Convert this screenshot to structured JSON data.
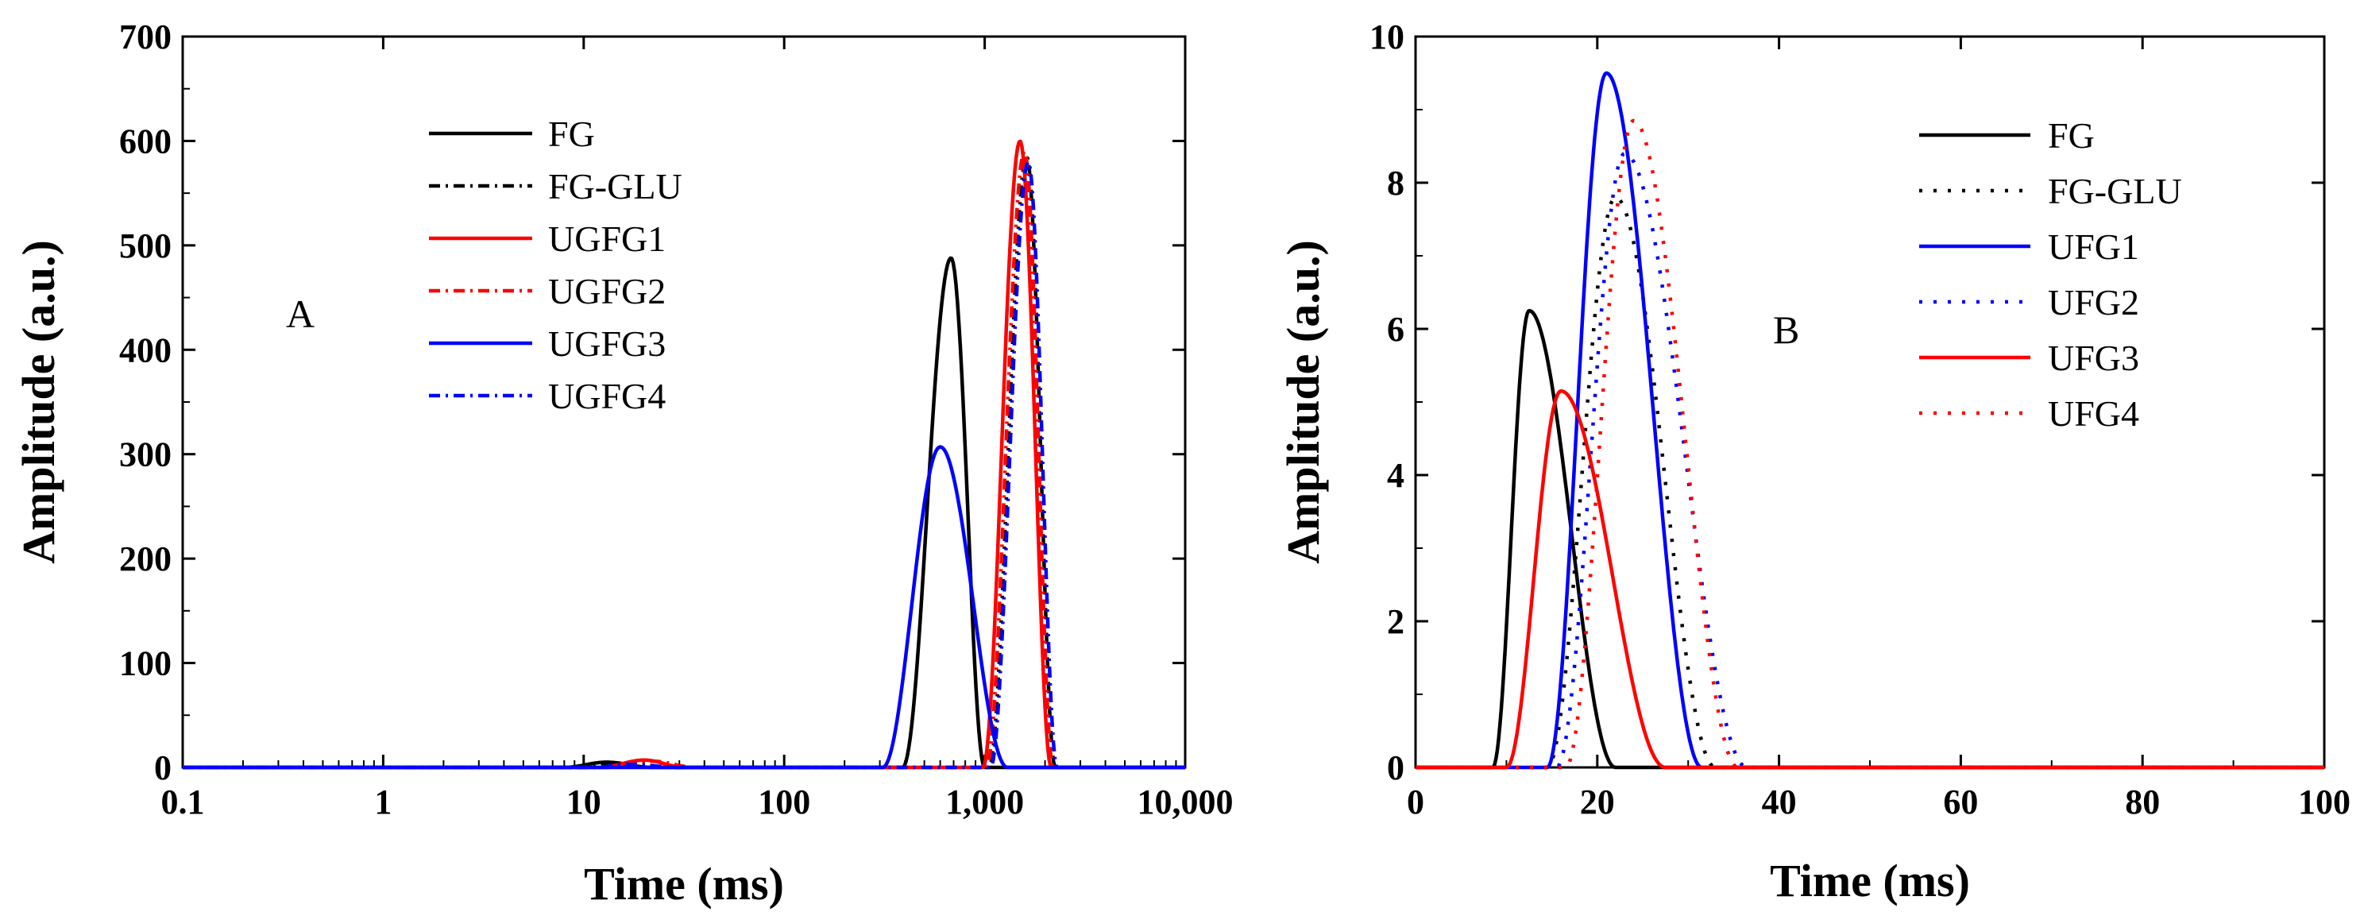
{
  "chart_data": [
    {
      "panel": "A",
      "type": "line",
      "annotation": "A",
      "xlabel": "Time (ms)",
      "ylabel": "Amplitude (a.u.)",
      "xscale": "log",
      "xlim": [
        0.1,
        10000
      ],
      "ylim": [
        0,
        700
      ],
      "xticks": [
        0.1,
        1,
        10,
        100,
        1000,
        10000
      ],
      "xtick_labels": [
        "0.1",
        "1",
        "10",
        "100",
        "1,000",
        "10,000"
      ],
      "yticks": [
        0,
        100,
        200,
        300,
        400,
        500,
        600,
        700
      ],
      "ytick_labels": [
        "0",
        "100",
        "200",
        "300",
        "400",
        "500",
        "600",
        "700"
      ],
      "legend_position": "upper-left",
      "series": [
        {
          "name": "FG",
          "color": "#000000",
          "dash": "solid",
          "peaks": [
            {
              "center": 680,
              "amp": 488,
              "start": 390,
              "end": 1000
            },
            {
              "center": 13,
              "amp": 5,
              "start": 8,
              "end": 22
            }
          ]
        },
        {
          "name": "FG-GLU",
          "color": "#000000",
          "dash": "dashdot",
          "peaks": [
            {
              "center": 1620,
              "amp": 585,
              "start": 1050,
              "end": 2250
            },
            {
              "center": 16,
              "amp": 4,
              "start": 10,
              "end": 28
            }
          ]
        },
        {
          "name": "UGFG1",
          "color": "#ff0000",
          "dash": "solid",
          "peaks": [
            {
              "center": 1500,
              "amp": 600,
              "start": 980,
              "end": 2150
            },
            {
              "center": 20,
              "amp": 7,
              "start": 12,
              "end": 32
            }
          ]
        },
        {
          "name": "UGFG2",
          "color": "#ff0000",
          "dash": "dashdot",
          "peaks": [
            {
              "center": 1580,
              "amp": 590,
              "start": 1020,
              "end": 2200
            },
            {
              "center": 22,
              "amp": 6,
              "start": 13,
              "end": 36
            }
          ]
        },
        {
          "name": "UGFG3",
          "color": "#0000ff",
          "dash": "solid",
          "peaks": [
            {
              "center": 600,
              "amp": 307,
              "start": 310,
              "end": 1300
            }
          ]
        },
        {
          "name": "UGFG4",
          "color": "#0000ff",
          "dash": "dashdot",
          "peaks": [
            {
              "center": 1650,
              "amp": 580,
              "start": 1070,
              "end": 2300
            },
            {
              "center": 17,
              "amp": 3,
              "start": 11,
              "end": 30
            }
          ]
        }
      ]
    },
    {
      "panel": "B",
      "type": "line",
      "annotation": "B",
      "xlabel": "Time (ms)",
      "ylabel": "Amplitude (a.u.)",
      "xscale": "linear",
      "xlim": [
        0,
        100
      ],
      "ylim": [
        0,
        10
      ],
      "xticks": [
        0,
        20,
        40,
        60,
        80,
        100
      ],
      "xtick_labels": [
        "0",
        "20",
        "40",
        "60",
        "80",
        "100"
      ],
      "yticks": [
        0,
        2,
        4,
        6,
        8,
        10
      ],
      "ytick_labels": [
        "0",
        "2",
        "4",
        "6",
        "8",
        "10"
      ],
      "legend_position": "upper-center",
      "series": [
        {
          "name": "FG",
          "color": "#000000",
          "dash": "solid",
          "peaks": [
            {
              "center": 12.5,
              "amp": 6.25,
              "start": 8.5,
              "end": 22
            }
          ]
        },
        {
          "name": "FG-GLU",
          "color": "#000000",
          "dash": "dot",
          "peaks": [
            {
              "center": 22,
              "amp": 7.8,
              "start": 14.5,
              "end": 33
            }
          ]
        },
        {
          "name": "UFG1",
          "color": "#0000ff",
          "dash": "solid",
          "peaks": [
            {
              "center": 21,
              "amp": 9.5,
              "start": 14.5,
              "end": 31.5
            }
          ]
        },
        {
          "name": "UFG2",
          "color": "#0000ff",
          "dash": "dot",
          "peaks": [
            {
              "center": 23,
              "amp": 8.4,
              "start": 15.5,
              "end": 36.5
            }
          ]
        },
        {
          "name": "UFG3",
          "color": "#ff0000",
          "dash": "solid",
          "peaks": [
            {
              "center": 16,
              "amp": 5.15,
              "start": 10,
              "end": 27.5
            }
          ]
        },
        {
          "name": "UFG4",
          "color": "#ff0000",
          "dash": "dot",
          "peaks": [
            {
              "center": 24,
              "amp": 8.85,
              "start": 16.5,
              "end": 35.5
            }
          ]
        }
      ]
    }
  ]
}
